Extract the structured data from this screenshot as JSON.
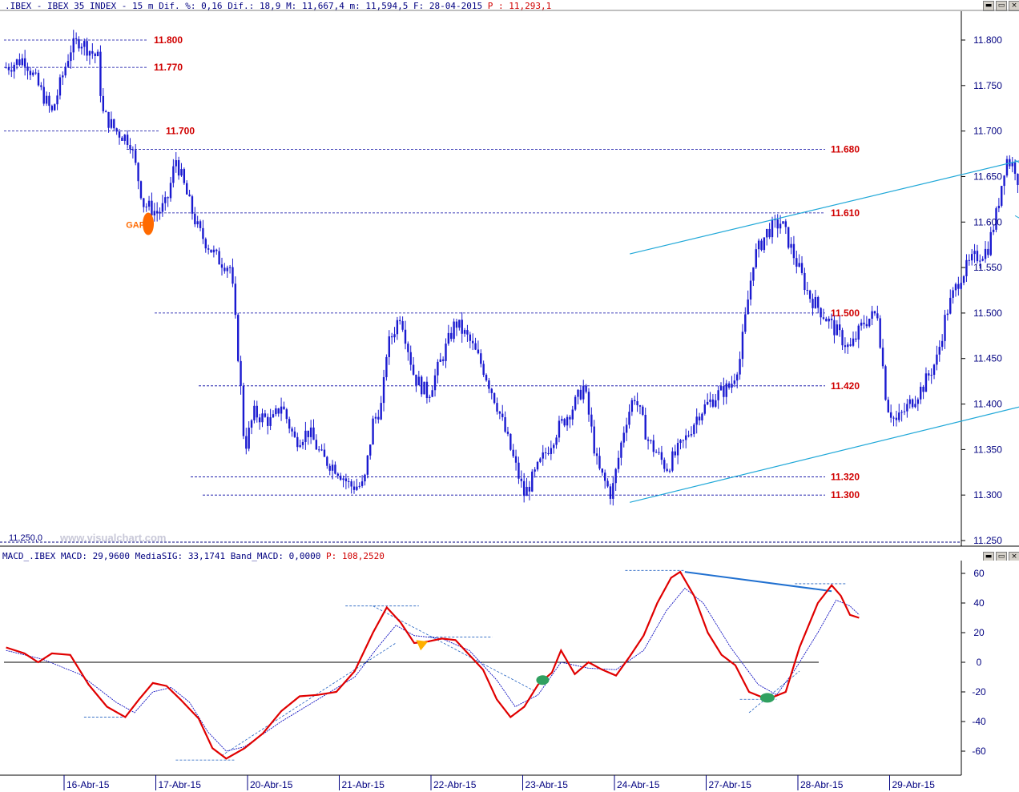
{
  "header": {
    "symbol": ".IBEX - IBEX 35 INDEX -",
    "timeframe": "15 m",
    "diff_label": "Dif. %:",
    "diff_pct": "0,16",
    "diff_abs_label": "Dif.:",
    "diff_abs": "18,9",
    "max_label": "M:",
    "max": "11,667,4",
    "min_label": "m:",
    "min": "11,594,5",
    "date_label": "F:",
    "date": "28-04-2015",
    "price_label": "P :",
    "price": "11,293,1"
  },
  "watermark": "www.visualchart.com",
  "price_min_label": "11,250,0",
  "gap_label": "GAP",
  "macd_header": {
    "name": "MACD_.IBEX MACD:",
    "macd": "29,9600",
    "sig_label": "MediaSIG:",
    "sig": "33,1741",
    "band_label": "Band_MACD:",
    "band": "0,0000",
    "p_label": "P:",
    "p": "108,2520"
  },
  "colors": {
    "candles": "#1a1ad0",
    "levels": "#0000a0",
    "level_labels": "#d00000",
    "channel": "#20a8d8",
    "macd": "#e00000",
    "signal": "#1010c0",
    "gap": "#ff6a00",
    "divergence": "#2070d0"
  },
  "chart_data": [
    {
      "type": "candlestick",
      "title": "IBEX 35 INDEX 15 m",
      "x_tick_labels": [
        "16-Abr-15",
        "17-Abr-15",
        "20-Abr-15",
        "21-Abr-15",
        "22-Abr-15",
        "23-Abr-15",
        "24-Abr-15",
        "27-Abr-15",
        "28-Abr-15",
        "29-Abr-15"
      ],
      "y_ticks": [
        "11.800",
        "11.750",
        "11.700",
        "11.650",
        "11.600",
        "11.550",
        "11.500",
        "11.450",
        "11.400",
        "11.350",
        "11.300",
        "11.250"
      ],
      "ylim": [
        11250,
        11820
      ],
      "horizontal_levels": [
        {
          "label": "11.800",
          "value": 11800
        },
        {
          "label": "11.770",
          "value": 11770
        },
        {
          "label": "11.700",
          "value": 11700
        },
        {
          "label": "11.680",
          "value": 11680
        },
        {
          "label": "11.610",
          "value": 11610
        },
        {
          "label": "11.500",
          "value": 11500
        },
        {
          "label": "11.420",
          "value": 11420
        },
        {
          "label": "11.320",
          "value": 11320
        },
        {
          "label": "11.300",
          "value": 11300
        }
      ],
      "close_path": [
        [
          0,
          11770
        ],
        [
          0.2,
          11780
        ],
        [
          0.4,
          11740
        ],
        [
          0.5,
          11720
        ],
        [
          0.7,
          11790
        ],
        [
          0.8,
          11800
        ],
        [
          1.0,
          11780
        ],
        [
          1.05,
          11720
        ],
        [
          1.2,
          11700
        ],
        [
          1.35,
          11690
        ],
        [
          1.5,
          11620
        ],
        [
          1.65,
          11610
        ],
        [
          1.75,
          11620
        ],
        [
          1.85,
          11670
        ],
        [
          2.0,
          11620
        ],
        [
          2.1,
          11590
        ],
        [
          2.3,
          11560
        ],
        [
          2.45,
          11550
        ],
        [
          2.55,
          11430
        ],
        [
          2.6,
          11350
        ],
        [
          2.7,
          11390
        ],
        [
          2.9,
          11380
        ],
        [
          3.0,
          11400
        ],
        [
          3.15,
          11360
        ],
        [
          3.3,
          11370
        ],
        [
          3.45,
          11340
        ],
        [
          3.6,
          11330
        ],
        [
          3.75,
          11310
        ],
        [
          3.9,
          11310
        ],
        [
          4.0,
          11380
        ],
        [
          4.1,
          11400
        ],
        [
          4.15,
          11460
        ],
        [
          4.3,
          11500
        ],
        [
          4.45,
          11430
        ],
        [
          4.6,
          11410
        ],
        [
          4.75,
          11450
        ],
        [
          4.9,
          11490
        ],
        [
          5.05,
          11470
        ],
        [
          5.2,
          11440
        ],
        [
          5.35,
          11400
        ],
        [
          5.5,
          11350
        ],
        [
          5.65,
          11300
        ],
        [
          5.8,
          11330
        ],
        [
          6.0,
          11370
        ],
        [
          6.2,
          11400
        ],
        [
          6.3,
          11420
        ],
        [
          6.45,
          11330
        ],
        [
          6.6,
          11300
        ],
        [
          6.75,
          11380
        ],
        [
          6.85,
          11410
        ],
        [
          7.0,
          11360
        ],
        [
          7.2,
          11330
        ],
        [
          7.4,
          11360
        ],
        [
          7.55,
          11390
        ],
        [
          7.75,
          11410
        ],
        [
          7.9,
          11420
        ],
        [
          8.0,
          11450
        ],
        [
          8.15,
          11560
        ],
        [
          8.3,
          11590
        ],
        [
          8.45,
          11600
        ],
        [
          8.6,
          11560
        ],
        [
          8.75,
          11520
        ],
        [
          8.9,
          11500
        ],
        [
          9.05,
          11480
        ],
        [
          9.2,
          11460
        ],
        [
          9.35,
          11490
        ],
        [
          9.5,
          11500
        ],
        [
          9.6,
          11400
        ],
        [
          9.7,
          11380
        ],
        [
          9.85,
          11400
        ],
        [
          10.0,
          11420
        ],
        [
          10.15,
          11450
        ],
        [
          10.25,
          11500
        ],
        [
          10.4,
          11540
        ],
        [
          10.55,
          11560
        ],
        [
          10.7,
          11570
        ],
        [
          10.8,
          11610
        ],
        [
          10.9,
          11670
        ],
        [
          11.0,
          11660
        ],
        [
          11.1,
          11620
        ],
        [
          11.2,
          11600
        ],
        [
          11.3,
          11650
        ],
        [
          11.4,
          11610
        ],
        [
          11.5,
          11650
        ]
      ]
    },
    {
      "type": "line",
      "title": "MACD",
      "y_ticks": [
        "60",
        "40",
        "20",
        "0",
        "-20",
        "-40",
        "-60"
      ],
      "ylim": [
        -76,
        68
      ],
      "series": [
        {
          "name": "MACD",
          "points": [
            [
              0,
              10
            ],
            [
              0.2,
              6
            ],
            [
              0.35,
              0
            ],
            [
              0.5,
              6
            ],
            [
              0.7,
              5
            ],
            [
              0.9,
              -15
            ],
            [
              1.1,
              -30
            ],
            [
              1.3,
              -37
            ],
            [
              1.45,
              -25
            ],
            [
              1.6,
              -14
            ],
            [
              1.75,
              -16
            ],
            [
              1.9,
              -25
            ],
            [
              2.1,
              -38
            ],
            [
              2.25,
              -58
            ],
            [
              2.4,
              -65
            ],
            [
              2.6,
              -58
            ],
            [
              2.8,
              -48
            ],
            [
              3.0,
              -33
            ],
            [
              3.2,
              -23
            ],
            [
              3.4,
              -22
            ],
            [
              3.6,
              -20
            ],
            [
              3.8,
              -6
            ],
            [
              4.0,
              20
            ],
            [
              4.15,
              37
            ],
            [
              4.3,
              27
            ],
            [
              4.45,
              13
            ],
            [
              4.6,
              14
            ],
            [
              4.75,
              16
            ],
            [
              4.9,
              15
            ],
            [
              5.05,
              5
            ],
            [
              5.2,
              -5
            ],
            [
              5.35,
              -25
            ],
            [
              5.5,
              -37
            ],
            [
              5.65,
              -30
            ],
            [
              5.8,
              -15
            ],
            [
              5.95,
              -7
            ],
            [
              6.05,
              8
            ],
            [
              6.2,
              -8
            ],
            [
              6.35,
              0
            ],
            [
              6.5,
              -5
            ],
            [
              6.65,
              -9
            ],
            [
              6.8,
              4
            ],
            [
              6.95,
              18
            ],
            [
              7.1,
              40
            ],
            [
              7.25,
              57
            ],
            [
              7.35,
              61
            ],
            [
              7.5,
              45
            ],
            [
              7.65,
              20
            ],
            [
              7.8,
              5
            ],
            [
              7.95,
              -2
            ],
            [
              8.1,
              -20
            ],
            [
              8.3,
              -25
            ],
            [
              8.5,
              -20
            ],
            [
              8.65,
              10
            ],
            [
              8.85,
              40
            ],
            [
              9.0,
              52
            ],
            [
              9.1,
              45
            ],
            [
              9.2,
              32
            ],
            [
              9.3,
              30
            ]
          ]
        },
        {
          "name": "MediaSIG",
          "points": [
            [
              0,
              8
            ],
            [
              0.4,
              2
            ],
            [
              0.8,
              -8
            ],
            [
              1.2,
              -27
            ],
            [
              1.4,
              -34
            ],
            [
              1.6,
              -20
            ],
            [
              1.8,
              -17
            ],
            [
              2.0,
              -27
            ],
            [
              2.2,
              -47
            ],
            [
              2.4,
              -60
            ],
            [
              2.6,
              -57
            ],
            [
              3.0,
              -40
            ],
            [
              3.4,
              -25
            ],
            [
              3.8,
              -10
            ],
            [
              4.05,
              10
            ],
            [
              4.25,
              25
            ],
            [
              4.45,
              18
            ],
            [
              4.75,
              16
            ],
            [
              5.05,
              8
            ],
            [
              5.35,
              -12
            ],
            [
              5.55,
              -30
            ],
            [
              5.8,
              -22
            ],
            [
              6.05,
              0
            ],
            [
              6.35,
              -4
            ],
            [
              6.65,
              -5
            ],
            [
              6.95,
              8
            ],
            [
              7.2,
              35
            ],
            [
              7.4,
              50
            ],
            [
              7.6,
              40
            ],
            [
              7.9,
              10
            ],
            [
              8.2,
              -15
            ],
            [
              8.4,
              -22
            ],
            [
              8.6,
              -5
            ],
            [
              8.85,
              20
            ],
            [
              9.05,
              42
            ],
            [
              9.2,
              38
            ],
            [
              9.3,
              32
            ]
          ]
        }
      ]
    }
  ]
}
